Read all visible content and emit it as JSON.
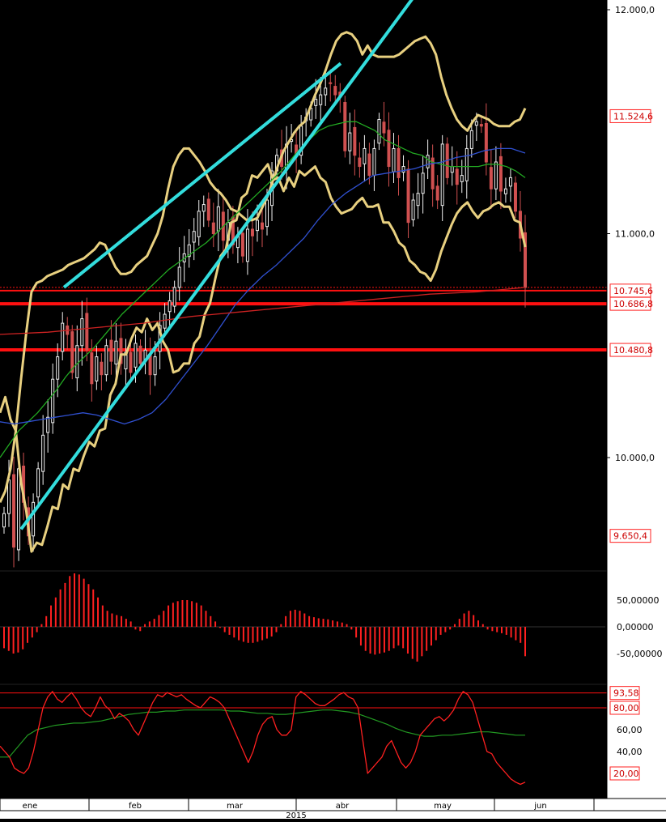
{
  "chart_data": [
    {
      "type": "candlestick",
      "panel": "price",
      "ylim": [
        9420,
        12080
      ],
      "y_ticks": [
        "12.000,0",
        "11.000,0",
        "10.000,0"
      ],
      "price_tags": [
        {
          "label": "11.524,6",
          "value": 11524.6
        },
        {
          "label": "10.745,6",
          "value": 10745.6
        },
        {
          "label": "10.686,8",
          "value": 10686.8
        },
        {
          "label": "10.480,8",
          "value": 10480.8
        },
        {
          "label": "9.650,4",
          "value": 9650.4
        }
      ],
      "horizontal_levels": [
        10745.6,
        10686.8,
        10480.8
      ],
      "close": [
        9750,
        9900,
        9600,
        9950,
        9800,
        9650,
        9800,
        9950,
        10100,
        10180,
        10350,
        10450,
        10600,
        10550,
        10380,
        10500,
        10620,
        10480,
        10330,
        10450,
        10370,
        10500,
        10430,
        10520,
        10420,
        10470,
        10380,
        10510,
        10420,
        10480,
        10370,
        10450,
        10590,
        10640,
        10700,
        10760,
        10850,
        10910,
        10950,
        11010,
        11100,
        11130,
        11060,
        11000,
        11120,
        10970,
        11050,
        10950,
        10990,
        10900,
        11020,
        10990,
        11060,
        11020,
        11150,
        11280,
        11350,
        11300,
        11400,
        11420,
        11350,
        11480,
        11520,
        11560,
        11600,
        11620,
        11650,
        11670,
        11620,
        11610,
        11370,
        11450,
        11350,
        11300,
        11380,
        11260,
        11380,
        11510,
        11450,
        11300,
        11380,
        11250,
        11300,
        11050,
        11150,
        11180,
        11270,
        11350,
        11200,
        11150,
        11400,
        11250,
        11300,
        11220,
        11260,
        11380,
        11460,
        11500,
        11480,
        11320,
        11200,
        11320,
        11190,
        11200,
        11250,
        11100,
        10980,
        10760
      ],
      "upper_band": [
        9800,
        9850,
        9950,
        10120,
        10350,
        10560,
        10740,
        10780,
        10790,
        10810,
        10820,
        10830,
        10840,
        10860,
        10870,
        10880,
        10890,
        10910,
        10930,
        10960,
        10950,
        10900,
        10850,
        10820,
        10820,
        10830,
        10860,
        10880,
        10900,
        10950,
        11000,
        11080,
        11200,
        11300,
        11350,
        11380,
        11380,
        11350,
        11320,
        11280,
        11230,
        11200,
        11180,
        11150,
        11110,
        11100,
        11080,
        11060,
        11060,
        11070,
        11120,
        11170,
        11240,
        11310,
        11370,
        11410,
        11450,
        11480,
        11500,
        11560,
        11620,
        11670,
        11730,
        11800,
        11860,
        11890,
        11900,
        11890,
        11860,
        11800,
        11840,
        11800,
        11790,
        11790,
        11790,
        11790,
        11800,
        11820,
        11840,
        11860,
        11870,
        11880,
        11850,
        11800,
        11700,
        11620,
        11560,
        11510,
        11480,
        11460,
        11500,
        11530,
        11520,
        11510,
        11490,
        11480,
        11480,
        11480,
        11500,
        11510,
        11560
      ],
      "middle_ma20": [
        10000,
        10060,
        10120,
        10160,
        10200,
        10250,
        10300,
        10360,
        10410,
        10450,
        10490,
        10540,
        10590,
        10640,
        10680,
        10720,
        10760,
        10800,
        10840,
        10870,
        10900,
        10930,
        10960,
        11000,
        11040,
        11080,
        11120,
        11160,
        11200,
        11240,
        11280,
        11330,
        11380,
        11420,
        11460,
        11480,
        11490,
        11500,
        11500,
        11480,
        11460,
        11420,
        11400,
        11380,
        11360,
        11350,
        11320,
        11310,
        11300,
        11300,
        11300,
        11300,
        11310,
        11310,
        11300,
        11280,
        11250
      ],
      "ma50": [
        10160,
        10150,
        10160,
        10170,
        10180,
        10190,
        10200,
        10190,
        10170,
        10150,
        10170,
        10200,
        10260,
        10340,
        10420,
        10500,
        10590,
        10680,
        10750,
        10810,
        10860,
        10920,
        10980,
        11060,
        11130,
        11180,
        11220,
        11260,
        11270,
        11280,
        11290,
        11310,
        11320,
        11340,
        11350,
        11370,
        11380,
        11380,
        11360
      ],
      "ma200": [
        10550,
        10560,
        10580,
        10600,
        10630,
        10650,
        10670,
        10690,
        10710,
        10730,
        10740,
        10760
      ],
      "trendlines": [
        {
          "name": "upper channel",
          "from": [
            9750,
            10760
          ],
          "to": [
            11680,
            11760
          ]
        },
        {
          "name": "lower channel",
          "from": [
            9680,
            9680
          ],
          "to": [
            12100,
            12100
          ]
        }
      ]
    },
    {
      "type": "bar",
      "panel": "oscillator",
      "y_ticks": [
        "50,00000",
        "0,00000",
        "-50,00000"
      ],
      "ylim": [
        -90,
        110
      ],
      "values": [
        -40,
        -45,
        -50,
        -48,
        -42,
        -30,
        -20,
        -10,
        5,
        20,
        40,
        55,
        70,
        82,
        95,
        100,
        98,
        90,
        80,
        70,
        55,
        40,
        30,
        25,
        22,
        20,
        15,
        10,
        -5,
        -8,
        5,
        10,
        15,
        22,
        30,
        40,
        45,
        48,
        50,
        50,
        48,
        45,
        40,
        30,
        20,
        10,
        -2,
        -10,
        -15,
        -20,
        -25,
        -28,
        -30,
        -30,
        -28,
        -25,
        -22,
        -18,
        -10,
        5,
        20,
        30,
        32,
        30,
        25,
        20,
        18,
        16,
        15,
        14,
        12,
        10,
        8,
        5,
        -5,
        -20,
        -35,
        -45,
        -50,
        -52,
        -50,
        -48,
        -45,
        -40,
        -35,
        -40,
        -50,
        -60,
        -65,
        -55,
        -45,
        -35,
        -25,
        -15,
        -10,
        -5,
        5,
        15,
        25,
        30,
        22,
        12,
        5,
        -5,
        -8,
        -10,
        -12,
        -15,
        -20,
        -25,
        -30,
        -55
      ]
    },
    {
      "type": "line",
      "panel": "stochastic",
      "y_ticks": [
        "60,00",
        "40,00"
      ],
      "ylim": [
        5,
        100
      ],
      "levels": [
        {
          "label": "93,58",
          "value": 93.58
        },
        {
          "label": "80,00",
          "value": 80.0
        },
        {
          "label": "20,00",
          "value": 20.0
        }
      ],
      "series": [
        {
          "values": [
            45,
            40,
            35,
            25,
            22,
            20,
            25,
            40,
            60,
            80,
            90,
            95,
            88,
            85,
            90,
            94,
            88,
            80,
            75,
            72,
            80,
            90,
            82,
            78,
            70,
            75,
            72,
            68,
            60,
            55,
            65,
            75,
            85,
            92,
            90,
            94,
            92,
            90,
            92,
            88,
            85,
            82,
            80,
            85,
            90,
            88,
            85,
            80,
            70,
            60,
            50,
            40,
            30,
            40,
            55,
            65,
            70,
            72,
            60,
            55,
            55,
            60,
            90,
            95,
            92,
            88,
            84,
            82,
            82,
            85,
            88,
            92,
            94,
            90,
            88,
            80,
            50,
            20,
            25,
            30,
            35,
            45,
            50,
            40,
            30,
            25,
            30,
            40,
            55,
            60,
            65,
            70,
            72,
            68,
            72,
            78,
            88,
            95,
            92,
            85,
            70,
            55,
            40,
            38,
            30,
            25,
            20,
            15,
            12,
            10,
            12
          ]
        },
        {
          "values": [
            35,
            35,
            45,
            55,
            60,
            62,
            64,
            65,
            66,
            66,
            67,
            68,
            70,
            72,
            74,
            75,
            76,
            76,
            77,
            77,
            78,
            78,
            78,
            78,
            78,
            77,
            77,
            76,
            75,
            75,
            74,
            74,
            75,
            76,
            77,
            78,
            78,
            77,
            76,
            74,
            71,
            68,
            65,
            61,
            58,
            56,
            54,
            54,
            55,
            55,
            56,
            57,
            58,
            58,
            57,
            56,
            55,
            55
          ]
        }
      ]
    }
  ],
  "x_axis": {
    "months": [
      "ene",
      "feb",
      "mar",
      "abr",
      "may",
      "jun"
    ],
    "year": "2015"
  },
  "colors": {
    "background": "#000000",
    "candle_up": "#f0f0f0",
    "candle_down": "#d05050",
    "bollinger": "#e8d080",
    "ma20": "#22aa22",
    "ma50": "#3050d0",
    "ma200": "#cc2222",
    "trendline": "#33dddd",
    "levels": "#ff1010",
    "oscillator": "#ff2020",
    "stoch_k": "#ff2020",
    "stoch_d": "#229922",
    "tag_border": "#ff2020",
    "axis_text": "#000000"
  }
}
